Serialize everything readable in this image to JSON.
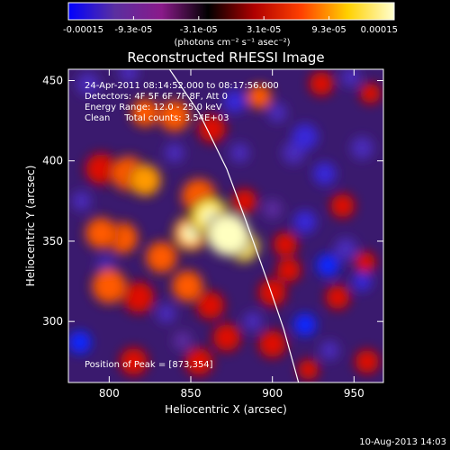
{
  "chart_data": {
    "type": "heatmap",
    "title": "Reconstructed RHESSI Image",
    "xlabel": "Heliocentric X (arcsec)",
    "ylabel": "Heliocentric Y (arcsec)",
    "xlim": [
      775,
      968
    ],
    "ylim": [
      262,
      457
    ],
    "x_ticks": [
      800,
      850,
      900,
      950
    ],
    "y_ticks": [
      300,
      350,
      400,
      450
    ],
    "colorbar": {
      "ticks": [
        "-0.00015",
        "-9.3e-05",
        "-3.1e-05",
        "3.1e-05",
        "9.3e-05",
        "0.00015"
      ],
      "unit": "(photons cm⁻² s⁻¹ asec⁻²)",
      "range": [
        -0.00015,
        0.00015
      ],
      "colormap": [
        "#0000ff",
        "#5a2fa0",
        "#8a1a8a",
        "#000000",
        "#b00000",
        "#ff4000",
        "#ffd000",
        "#ffffd0"
      ]
    },
    "annotations": [
      "24-Apr-2011 08:14:52.000 to 08:17:56.000",
      "Detectors: 4F 5F 6F 7F 8F, Att 0",
      "Energy Range: 12.0 - 25.0 keV",
      "Clean     Total counts: 3.54E+03",
      "Position of Peak = [873,354]"
    ],
    "peak": [
      873,
      354
    ],
    "limb_line": [
      [
        837,
        457
      ],
      [
        855,
        430
      ],
      [
        872,
        395
      ],
      [
        884,
        362
      ],
      [
        897,
        325
      ],
      [
        907,
        295
      ],
      [
        916,
        262
      ]
    ],
    "blobs": [
      {
        "x": 873,
        "y": 354,
        "v": 0.00015,
        "r": 12
      },
      {
        "x": 862,
        "y": 365,
        "v": 0.00012,
        "r": 11
      },
      {
        "x": 850,
        "y": 355,
        "v": 0.0001,
        "r": 10
      },
      {
        "x": 882,
        "y": 347,
        "v": 0.00011,
        "r": 9
      },
      {
        "x": 855,
        "y": 378,
        "v": 8e-05,
        "r": 10
      },
      {
        "x": 822,
        "y": 388,
        "v": 9e-05,
        "r": 9
      },
      {
        "x": 812,
        "y": 392,
        "v": 7e-05,
        "r": 10
      },
      {
        "x": 795,
        "y": 395,
        "v": 6e-05,
        "r": 9
      },
      {
        "x": 795,
        "y": 355,
        "v": 8e-05,
        "r": 9
      },
      {
        "x": 808,
        "y": 352,
        "v": 7e-05,
        "r": 9
      },
      {
        "x": 832,
        "y": 340,
        "v": 8e-05,
        "r": 9
      },
      {
        "x": 840,
        "y": 428,
        "v": 8e-05,
        "r": 9
      },
      {
        "x": 822,
        "y": 430,
        "v": 7e-05,
        "r": 8
      },
      {
        "x": 863,
        "y": 420,
        "v": 6e-05,
        "r": 8
      },
      {
        "x": 892,
        "y": 440,
        "v": 7e-05,
        "r": 7
      },
      {
        "x": 800,
        "y": 322,
        "v": 7e-05,
        "r": 10
      },
      {
        "x": 818,
        "y": 315,
        "v": 6e-05,
        "r": 9
      },
      {
        "x": 848,
        "y": 322,
        "v": 7e-05,
        "r": 9
      },
      {
        "x": 862,
        "y": 310,
        "v": 5e-05,
        "r": 8
      },
      {
        "x": 900,
        "y": 318,
        "v": 6e-05,
        "r": 8
      },
      {
        "x": 910,
        "y": 332,
        "v": 5e-05,
        "r": 7
      },
      {
        "x": 883,
        "y": 375,
        "v": 4e-05,
        "r": 7
      },
      {
        "x": 908,
        "y": 348,
        "v": 4e-05,
        "r": 7
      },
      {
        "x": 930,
        "y": 448,
        "v": 5e-05,
        "r": 7
      },
      {
        "x": 943,
        "y": 372,
        "v": 4e-05,
        "r": 7
      },
      {
        "x": 960,
        "y": 442,
        "v": 4e-05,
        "r": 6
      },
      {
        "x": 940,
        "y": 315,
        "v": 4e-05,
        "r": 7
      },
      {
        "x": 957,
        "y": 337,
        "v": 4e-05,
        "r": 6
      },
      {
        "x": 958,
        "y": 275,
        "v": 5e-05,
        "r": 7
      },
      {
        "x": 872,
        "y": 290,
        "v": 5e-05,
        "r": 8
      },
      {
        "x": 900,
        "y": 286,
        "v": 6e-05,
        "r": 8
      },
      {
        "x": 855,
        "y": 275,
        "v": 4e-05,
        "r": 8
      },
      {
        "x": 815,
        "y": 275,
        "v": 4e-05,
        "r": 8
      },
      {
        "x": 922,
        "y": 270,
        "v": 5e-05,
        "r": 6
      },
      {
        "x": 787,
        "y": 448,
        "v": -6e-05,
        "r": 7
      },
      {
        "x": 812,
        "y": 455,
        "v": -5e-05,
        "r": 6
      },
      {
        "x": 877,
        "y": 437,
        "v": -7e-05,
        "r": 7
      },
      {
        "x": 903,
        "y": 430,
        "v": -6e-05,
        "r": 6
      },
      {
        "x": 920,
        "y": 415,
        "v": -8e-05,
        "r": 8
      },
      {
        "x": 932,
        "y": 392,
        "v": -7e-05,
        "r": 7
      },
      {
        "x": 913,
        "y": 405,
        "v": -5e-05,
        "r": 7
      },
      {
        "x": 920,
        "y": 362,
        "v": -8e-05,
        "r": 7
      },
      {
        "x": 945,
        "y": 345,
        "v": -6e-05,
        "r": 7
      },
      {
        "x": 934,
        "y": 335,
        "v": -0.0001,
        "r": 7
      },
      {
        "x": 955,
        "y": 325,
        "v": -7e-05,
        "r": 6
      },
      {
        "x": 920,
        "y": 298,
        "v": -9e-05,
        "r": 7
      },
      {
        "x": 935,
        "y": 282,
        "v": -6e-05,
        "r": 6
      },
      {
        "x": 955,
        "y": 408,
        "v": -5e-05,
        "r": 7
      },
      {
        "x": 888,
        "y": 300,
        "v": -5e-05,
        "r": 6
      },
      {
        "x": 835,
        "y": 305,
        "v": -5e-05,
        "r": 6
      },
      {
        "x": 782,
        "y": 287,
        "v": -9e-05,
        "r": 7
      },
      {
        "x": 783,
        "y": 375,
        "v": -5e-05,
        "r": 6
      },
      {
        "x": 798,
        "y": 335,
        "v": -4e-05,
        "r": 6
      },
      {
        "x": 840,
        "y": 405,
        "v": -4e-05,
        "r": 6
      },
      {
        "x": 880,
        "y": 405,
        "v": -4e-05,
        "r": 6
      },
      {
        "x": 845,
        "y": 288,
        "v": -3e-05,
        "r": 6
      },
      {
        "x": 948,
        "y": 452,
        "v": -4e-05,
        "r": 6
      },
      {
        "x": 900,
        "y": 370,
        "v": -3e-05,
        "r": 6
      }
    ]
  },
  "footer": {
    "timestamp": "10-Aug-2013 14:03"
  }
}
